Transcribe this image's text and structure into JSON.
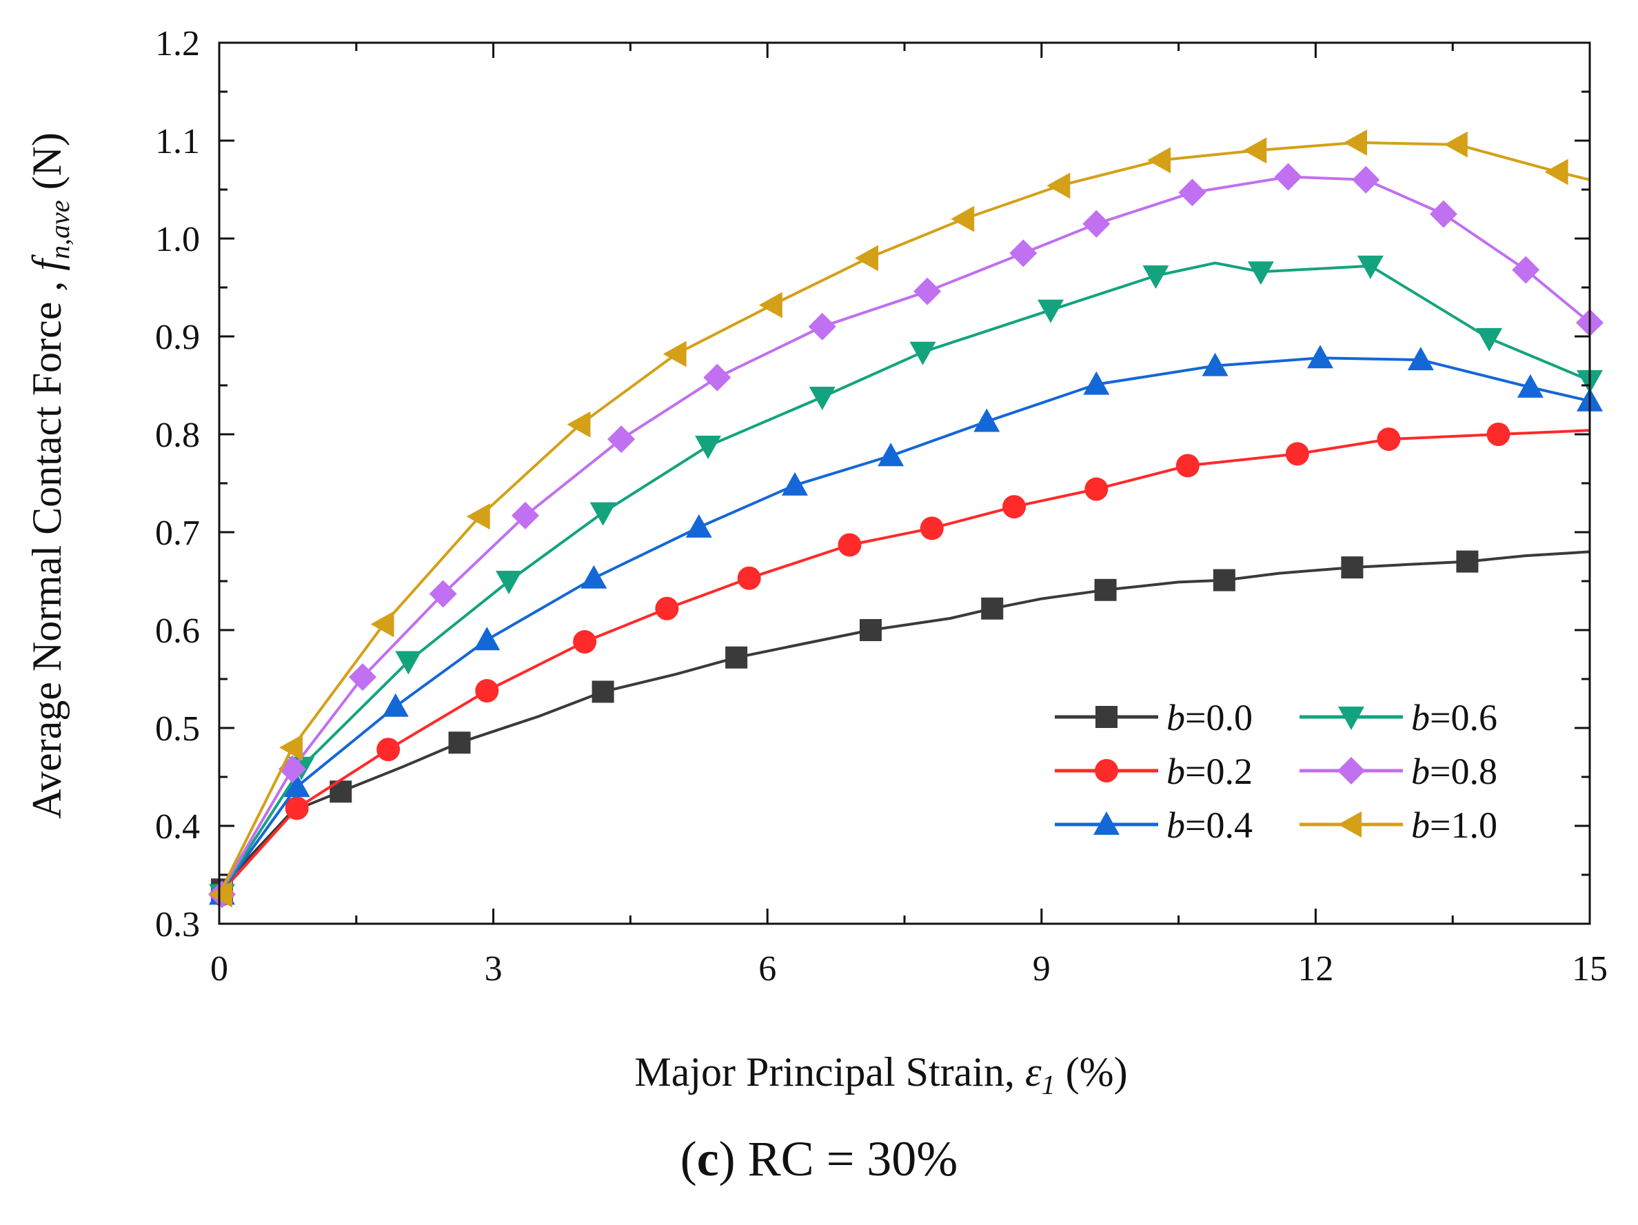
{
  "chart_data": {
    "type": "line",
    "xlabel": {
      "prefix": "Major Principal Strain, ",
      "symbol": "ε",
      "subscript": "1",
      "suffix": " (%)"
    },
    "ylabel": {
      "prefix": "Average Normal Contact Force , ",
      "symbol": "f",
      "subscript": "n,ave",
      "suffix": " (N)"
    },
    "xlim": [
      0,
      15
    ],
    "ylim": [
      0.3,
      1.2
    ],
    "xticks": [
      "0",
      "3",
      "6",
      "9",
      "12",
      "15"
    ],
    "yticks": [
      "0.3",
      "0.4",
      "0.5",
      "0.6",
      "0.7",
      "0.8",
      "0.9",
      "1.0",
      "1.1",
      "1.2"
    ],
    "legend_position": "bottom-right",
    "series": [
      {
        "name": "b=0.0",
        "param": "b",
        "value": "=0.0",
        "color": "#3a3a3a",
        "marker": "square",
        "x": [
          0,
          0.8,
          1.33,
          2.0,
          2.63,
          3.5,
          4.2,
          5.0,
          5.66,
          6.5,
          7.13,
          8.0,
          8.46,
          9.0,
          9.7,
          10.5,
          11.0,
          11.6,
          12.4,
          13.0,
          13.66,
          14.3,
          15.0
        ],
        "y": [
          0.335,
          0.415,
          0.435,
          0.46,
          0.485,
          0.512,
          0.537,
          0.555,
          0.572,
          0.588,
          0.6,
          0.612,
          0.622,
          0.632,
          0.641,
          0.649,
          0.651,
          0.658,
          0.664,
          0.667,
          0.67,
          0.676,
          0.68
        ],
        "marker_indices": [
          2,
          4,
          6,
          8,
          10,
          12,
          14,
          16,
          18,
          20
        ]
      },
      {
        "name": "b=0.2",
        "param": "b",
        "value": "=0.2",
        "color": "#ff2a2a",
        "marker": "circle",
        "x": [
          0,
          0.85,
          1.85,
          2.93,
          4.0,
          4.9,
          5.8,
          6.9,
          7.8,
          8.7,
          9.6,
          10.6,
          11.8,
          12.8,
          14.0,
          15.0
        ],
        "y": [
          0.33,
          0.418,
          0.478,
          0.538,
          0.588,
          0.622,
          0.653,
          0.687,
          0.704,
          0.726,
          0.744,
          0.768,
          0.78,
          0.795,
          0.8,
          0.804
        ],
        "marker_indices": [
          1,
          2,
          3,
          4,
          5,
          6,
          7,
          8,
          9,
          10,
          11,
          12,
          13,
          14
        ]
      },
      {
        "name": "b=0.4",
        "param": "b",
        "value": "=0.4",
        "color": "#1467d6",
        "marker": "triangle-up",
        "x": [
          0,
          0.85,
          1.93,
          2.93,
          4.1,
          5.25,
          6.3,
          7.35,
          8.4,
          9.6,
          10.9,
          12.05,
          13.15,
          14.35,
          15.0
        ],
        "y": [
          0.33,
          0.44,
          0.522,
          0.59,
          0.653,
          0.705,
          0.748,
          0.778,
          0.813,
          0.851,
          0.87,
          0.878,
          0.876,
          0.848,
          0.834
        ],
        "marker_indices": [
          1,
          2,
          3,
          4,
          5,
          6,
          7,
          8,
          9,
          10,
          11,
          12,
          13,
          14
        ]
      },
      {
        "name": "b=0.6",
        "param": "b",
        "value": "=0.6",
        "color": "#14a37f",
        "marker": "triangle-down",
        "x": [
          0,
          0.9,
          2.07,
          3.17,
          4.2,
          5.35,
          6.6,
          7.7,
          9.1,
          10.25,
          10.9,
          11.4,
          12.6,
          13.9,
          15.0
        ],
        "y": [
          0.33,
          0.46,
          0.568,
          0.65,
          0.72,
          0.788,
          0.838,
          0.884,
          0.927,
          0.962,
          0.975,
          0.966,
          0.972,
          0.898,
          0.855
        ],
        "marker_indices": [
          1,
          2,
          3,
          4,
          5,
          6,
          7,
          8,
          9,
          11,
          12,
          13,
          14
        ]
      },
      {
        "name": "b=0.8",
        "param": "b",
        "value": "=0.8",
        "color": "#c070f0",
        "marker": "diamond",
        "x": [
          0,
          0.8,
          1.57,
          2.45,
          3.35,
          4.4,
          5.45,
          6.6,
          7.75,
          8.8,
          9.6,
          10.65,
          11.7,
          12.55,
          13.4,
          14.3,
          15.0
        ],
        "y": [
          0.33,
          0.458,
          0.552,
          0.637,
          0.717,
          0.795,
          0.858,
          0.91,
          0.946,
          0.985,
          1.015,
          1.047,
          1.063,
          1.06,
          1.025,
          0.968,
          0.914
        ],
        "marker_indices": [
          1,
          2,
          3,
          4,
          5,
          6,
          7,
          8,
          9,
          10,
          11,
          12,
          13,
          14,
          15,
          16
        ]
      },
      {
        "name": "b=1.0",
        "param": "b",
        "value": "=1.0",
        "color": "#d4a017",
        "marker": "triangle-left",
        "x": [
          0,
          0.8,
          1.8,
          2.85,
          3.95,
          5.0,
          6.05,
          7.1,
          8.15,
          9.2,
          10.3,
          11.35,
          12.45,
          13.55,
          14.65,
          15.0
        ],
        "y": [
          0.33,
          0.48,
          0.606,
          0.716,
          0.81,
          0.882,
          0.932,
          0.98,
          1.02,
          1.054,
          1.08,
          1.09,
          1.098,
          1.096,
          1.068,
          1.06
        ],
        "marker_indices": [
          1,
          2,
          3,
          4,
          5,
          6,
          7,
          8,
          9,
          10,
          11,
          12,
          13,
          14
        ]
      }
    ]
  },
  "caption": {
    "open": "(",
    "letter": "c",
    "close": ")",
    "text": " RC = 30%"
  }
}
